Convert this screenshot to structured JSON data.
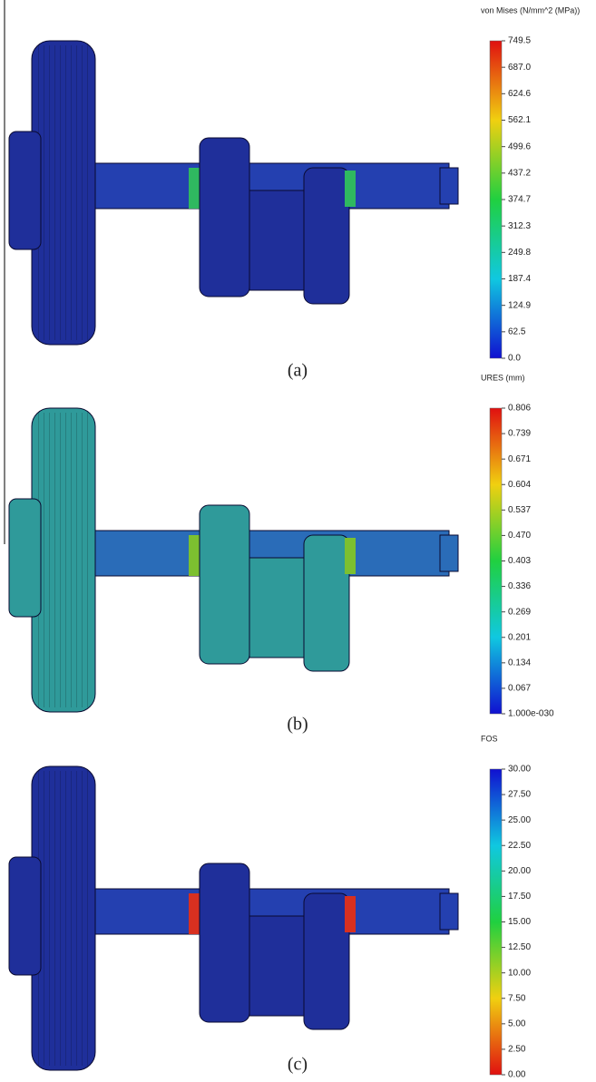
{
  "panels": [
    {
      "legend_title": "von Mises (N/mm^2 (MPa))",
      "ticks": [
        "749.5",
        "687.0",
        "624.6",
        "562.1",
        "499.6",
        "437.2",
        "374.7",
        "312.3",
        "249.8",
        "187.4",
        "124.9",
        "62.5",
        "0.0"
      ],
      "caption": "(a)"
    },
    {
      "legend_title": "URES (mm)",
      "ticks": [
        "0.806",
        "0.739",
        "0.671",
        "0.604",
        "0.537",
        "0.470",
        "0.403",
        "0.336",
        "0.269",
        "0.201",
        "0.134",
        "0.067",
        "1.000e-030"
      ],
      "caption": "(b)"
    },
    {
      "legend_title": "FOS",
      "ticks": [
        "30.00",
        "27.50",
        "25.00",
        "22.50",
        "20.00",
        "17.50",
        "15.00",
        "12.50",
        "10.00",
        "7.50",
        "5.00",
        "2.50",
        "0.00"
      ],
      "caption": "(c)"
    }
  ]
}
